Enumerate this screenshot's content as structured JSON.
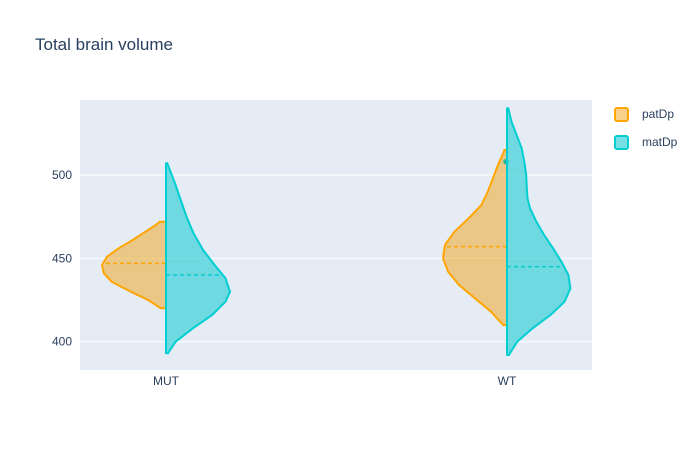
{
  "chart_data": {
    "type": "violin",
    "title": "Total brain volume",
    "xlabel": "",
    "ylabel": "",
    "categories": [
      "MUT",
      "WT"
    ],
    "ylim": [
      383,
      545
    ],
    "yticks": [
      400,
      450,
      500
    ],
    "grid": true,
    "legend_position": "top-right",
    "series": [
      {
        "name": "patDp",
        "side": "negative",
        "color": "#FFA500",
        "fill": "rgba(240,170,40,0.55)",
        "groups": [
          {
            "category": "MUT",
            "y_min": 420,
            "y_max": 472,
            "mean": 447,
            "density": [
              [
                420,
                0.08
              ],
              [
                425,
                0.28
              ],
              [
                430,
                0.55
              ],
              [
                436,
                0.85
              ],
              [
                441,
                0.97
              ],
              [
                446,
                1.0
              ],
              [
                451,
                0.92
              ],
              [
                456,
                0.74
              ],
              [
                461,
                0.52
              ],
              [
                466,
                0.32
              ],
              [
                470,
                0.16
              ],
              [
                472,
                0.1
              ]
            ]
          },
          {
            "category": "WT",
            "y_min": 410,
            "y_max": 515,
            "mean": 457,
            "points": [
              508
            ],
            "density": [
              [
                410,
                0.06
              ],
              [
                418,
                0.25
              ],
              [
                426,
                0.5
              ],
              [
                434,
                0.75
              ],
              [
                442,
                0.92
              ],
              [
                450,
                1.0
              ],
              [
                458,
                0.97
              ],
              [
                466,
                0.82
              ],
              [
                474,
                0.6
              ],
              [
                482,
                0.4
              ],
              [
                490,
                0.3
              ],
              [
                498,
                0.22
              ],
              [
                506,
                0.14
              ],
              [
                513,
                0.06
              ],
              [
                515,
                0.04
              ]
            ]
          }
        ]
      },
      {
        "name": "matDp",
        "side": "positive",
        "color": "#00CED1",
        "fill": "rgba(60,210,215,0.7)",
        "groups": [
          {
            "category": "MUT",
            "y_min": 393,
            "y_max": 507,
            "mean": 440,
            "density": [
              [
                393,
                0.03
              ],
              [
                400,
                0.15
              ],
              [
                408,
                0.42
              ],
              [
                416,
                0.72
              ],
              [
                424,
                0.93
              ],
              [
                430,
                1.0
              ],
              [
                438,
                0.93
              ],
              [
                446,
                0.76
              ],
              [
                455,
                0.58
              ],
              [
                465,
                0.43
              ],
              [
                475,
                0.32
              ],
              [
                485,
                0.23
              ],
              [
                495,
                0.14
              ],
              [
                502,
                0.07
              ],
              [
                507,
                0.02
              ]
            ]
          },
          {
            "category": "WT",
            "y_min": 392,
            "y_max": 540,
            "mean": 445,
            "density": [
              [
                392,
                0.03
              ],
              [
                400,
                0.16
              ],
              [
                408,
                0.4
              ],
              [
                416,
                0.68
              ],
              [
                424,
                0.9
              ],
              [
                432,
                0.99
              ],
              [
                440,
                0.96
              ],
              [
                448,
                0.85
              ],
              [
                456,
                0.72
              ],
              [
                464,
                0.58
              ],
              [
                472,
                0.46
              ],
              [
                480,
                0.36
              ],
              [
                486,
                0.32
              ],
              [
                492,
                0.31
              ],
              [
                500,
                0.3
              ],
              [
                508,
                0.27
              ],
              [
                516,
                0.23
              ],
              [
                524,
                0.15
              ],
              [
                532,
                0.07
              ],
              [
                540,
                0.02
              ]
            ]
          }
        ]
      }
    ]
  }
}
